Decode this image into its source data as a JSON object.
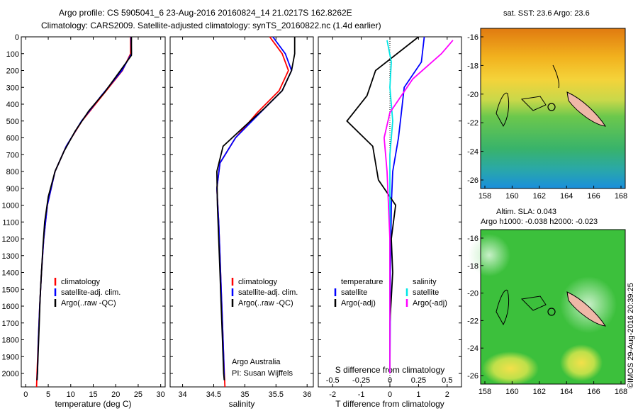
{
  "header": {
    "title_line1": "Argo profile: CS 5905041_6 23-Aug-2016 20160824_14 21.0217S 162.8262E",
    "title_line2": "Climatology: CARS2009. Satellite-adjusted climatology: synTS_20160822.nc (1.4d earlier)"
  },
  "colors": {
    "climatology": "#ff0000",
    "satellite": "#0000ff",
    "argo": "#000000",
    "salinity_satellite": "#00e5e5",
    "salinity_argo": "#ff00ff"
  },
  "chart_data": [
    {
      "id": "temperature",
      "type": "line",
      "xlabel": "temperature (deg C)",
      "xlim": [
        -1,
        31
      ],
      "xticks": [
        0,
        5,
        10,
        15,
        20,
        25,
        30
      ],
      "ylim": [
        0,
        2080
      ],
      "yticks": [
        0,
        100,
        200,
        300,
        400,
        500,
        600,
        700,
        800,
        900,
        1000,
        1100,
        1200,
        1300,
        1400,
        1500,
        1600,
        1700,
        1800,
        1900,
        2000
      ],
      "y_inverted": true,
      "legend": [
        "climatology",
        "satellite-adj. clim.",
        "Argo(..raw -QC)"
      ],
      "series": [
        {
          "name": "climatology",
          "color": "#ff0000",
          "points": [
            [
              23.3,
              0
            ],
            [
              23.3,
              100
            ],
            [
              21.5,
              200
            ],
            [
              17,
              350
            ],
            [
              12.5,
              500
            ],
            [
              9,
              650
            ],
            [
              6.5,
              800
            ],
            [
              4.8,
              1000
            ],
            [
              4,
              1200
            ],
            [
              3.5,
              1400
            ],
            [
              3.1,
              1600
            ],
            [
              2.8,
              1800
            ],
            [
              2.5,
              2000
            ],
            [
              2.4,
              2080
            ]
          ]
        },
        {
          "name": "satellite-adj. clim.",
          "color": "#0000ff",
          "points": [
            [
              23.4,
              0
            ],
            [
              23.5,
              100
            ],
            [
              21.4,
              200
            ],
            [
              16.8,
              350
            ],
            [
              12.4,
              500
            ],
            [
              9,
              650
            ],
            [
              6.5,
              800
            ],
            [
              4.8,
              1000
            ],
            [
              4,
              1200
            ],
            [
              3.5,
              1400
            ],
            [
              3.1,
              1600
            ],
            [
              2.8,
              1800
            ],
            [
              2.6,
              2000
            ],
            [
              2.5,
              2040
            ]
          ]
        },
        {
          "name": "Argo(..raw -QC)",
          "color": "#000000",
          "points": [
            [
              23.5,
              0
            ],
            [
              23.5,
              110
            ],
            [
              20.5,
              220
            ],
            [
              17.5,
              330
            ],
            [
              14,
              440
            ],
            [
              11,
              560
            ],
            [
              8.5,
              680
            ],
            [
              6.5,
              800
            ],
            [
              5,
              950
            ],
            [
              4.2,
              1100
            ],
            [
              3.8,
              1250
            ],
            [
              3.5,
              1400
            ],
            [
              3.2,
              1550
            ],
            [
              3,
              1700
            ],
            [
              2.8,
              1850
            ],
            [
              2.6,
              2000
            ],
            [
              2.5,
              2040
            ]
          ]
        }
      ]
    },
    {
      "id": "salinity",
      "type": "line",
      "xlabel": "salinity",
      "xlim": [
        33.8,
        36.1
      ],
      "xticks": [
        34,
        34.5,
        35,
        35.5,
        36
      ],
      "ylim": [
        0,
        2080
      ],
      "y_inverted": true,
      "legend": [
        "climatology",
        "satellite-adj. clim.",
        "Argo(..raw -QC)"
      ],
      "annotation": [
        "Argo Australia",
        "PI: Susan Wijffels"
      ],
      "series": [
        {
          "name": "climatology",
          "color": "#ff0000",
          "points": [
            [
              35.4,
              0
            ],
            [
              35.6,
              100
            ],
            [
              35.7,
              200
            ],
            [
              35.55,
              320
            ],
            [
              35.2,
              450
            ],
            [
              34.85,
              600
            ],
            [
              34.6,
              750
            ],
            [
              34.55,
              900
            ],
            [
              34.58,
              1100
            ],
            [
              34.6,
              1300
            ],
            [
              34.62,
              1500
            ],
            [
              34.64,
              1700
            ],
            [
              34.66,
              1900
            ],
            [
              34.68,
              2080
            ]
          ]
        },
        {
          "name": "satellite-adj. clim.",
          "color": "#0000ff",
          "points": [
            [
              35.45,
              0
            ],
            [
              35.65,
              100
            ],
            [
              35.75,
              200
            ],
            [
              35.6,
              320
            ],
            [
              35.25,
              450
            ],
            [
              34.85,
              600
            ],
            [
              34.6,
              750
            ],
            [
              34.55,
              900
            ],
            [
              34.58,
              1100
            ],
            [
              34.6,
              1300
            ],
            [
              34.62,
              1500
            ],
            [
              34.64,
              1700
            ],
            [
              34.66,
              1900
            ],
            [
              34.67,
              2040
            ]
          ]
        },
        {
          "name": "Argo(..raw -QC)",
          "color": "#000000",
          "points": [
            [
              35.8,
              0
            ],
            [
              35.8,
              100
            ],
            [
              35.75,
              200
            ],
            [
              35.6,
              320
            ],
            [
              35.3,
              430
            ],
            [
              35,
              530
            ],
            [
              34.65,
              650
            ],
            [
              34.55,
              800
            ],
            [
              34.56,
              1000
            ],
            [
              34.58,
              1200
            ],
            [
              34.6,
              1400
            ],
            [
              34.62,
              1600
            ],
            [
              34.64,
              1800
            ],
            [
              34.66,
              2000
            ],
            [
              34.67,
              2040
            ]
          ]
        }
      ]
    },
    {
      "id": "difference",
      "type": "line",
      "xlabel": "T difference from climatology",
      "xlabel_top": "S difference from climatology",
      "xlim": [
        -2.5,
        2.5
      ],
      "xticks": [
        -2,
        -1,
        0,
        1,
        2
      ],
      "xticks_top": [
        -0.5,
        -0.25,
        0,
        0.25,
        0.5
      ],
      "ylim": [
        0,
        2080
      ],
      "y_inverted": true,
      "legend_left_title": "temperature",
      "legend_right_title": "salinity",
      "legend_left": [
        "satellite",
        "Argo(-adj)"
      ],
      "legend_right": [
        "satellite",
        "Argo(-adj)"
      ],
      "series": [
        {
          "name": "T satellite",
          "color": "#0000ff",
          "points": [
            [
              1.2,
              0
            ],
            [
              1.1,
              150
            ],
            [
              0.5,
              300
            ],
            [
              0.4,
              450
            ],
            [
              0.3,
              600
            ],
            [
              0.1,
              800
            ],
            [
              0.05,
              1000
            ],
            [
              0.02,
              1400
            ],
            [
              0,
              2000
            ]
          ]
        },
        {
          "name": "T Argo(-adj)",
          "color": "#000000",
          "points": [
            [
              1,
              0
            ],
            [
              -0.5,
              200
            ],
            [
              -0.8,
              350
            ],
            [
              -1.5,
              500
            ],
            [
              -0.6,
              650
            ],
            [
              -0.4,
              850
            ],
            [
              0.2,
              1000
            ],
            [
              0.05,
              1200
            ],
            [
              0.1,
              1400
            ],
            [
              0,
              1700
            ],
            [
              0,
              2000
            ]
          ]
        },
        {
          "name": "S satellite",
          "color": "#00e5e5",
          "points": [
            [
              -0.1,
              20
            ],
            [
              0.05,
              150
            ],
            [
              0,
              300
            ],
            [
              0.1,
              500
            ],
            [
              0,
              700
            ],
            [
              0,
              1000
            ],
            [
              0,
              1500
            ],
            [
              0,
              2000
            ]
          ]
        },
        {
          "name": "S Argo(-adj)",
          "color": "#ff00ff",
          "points": [
            [
              2.2,
              20
            ],
            [
              1.8,
              100
            ],
            [
              0.8,
              250
            ],
            [
              0,
              450
            ],
            [
              -0.2,
              600
            ],
            [
              -0.1,
              800
            ],
            [
              0,
              1200
            ],
            [
              0,
              2000
            ]
          ]
        }
      ]
    }
  ],
  "map_top": {
    "title": "sat. SST: 23.6 Argo: 23.6",
    "xticks": [
      158,
      160,
      162,
      164,
      166,
      168
    ],
    "yticks": [
      -16,
      -18,
      -20,
      -22,
      -24,
      -26
    ]
  },
  "map_bottom": {
    "title_line1": "Altim. SLA: 0.043",
    "title_line2": "Argo h1000: -0.038 h2000: -0.023",
    "xticks": [
      158,
      160,
      162,
      164,
      166,
      168
    ],
    "yticks": [
      -16,
      -18,
      -20,
      -22,
      -24,
      -26
    ]
  },
  "credit": "©IMOS 29-Aug-2016 20:39:25"
}
